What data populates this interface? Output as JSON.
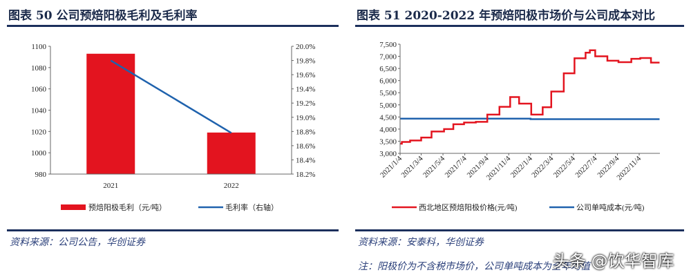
{
  "left": {
    "title": "图表 50 公司预焙阳极毛利及毛利率",
    "source": "资料来源：公司公告，华创证券"
  },
  "right": {
    "title": "图表 51 2020-2022 年预焙阳极市场价与公司成本对比",
    "source": "资料来源：安泰科，华创证券",
    "note": "注：阳极价为不含税市场价，公司单吨成本为全年均值"
  },
  "watermark": "头条 @饮华智库",
  "colors": {
    "red": "#e3141f",
    "blue": "#1f62ad",
    "navy": "#1b2f5c"
  },
  "chart_data": [
    {
      "type": "bar+line",
      "categories": [
        "2021",
        "2022"
      ],
      "series": [
        {
          "name": "预焙阳极毛利（元/吨）",
          "type": "bar",
          "axis": "left",
          "values": [
            1093,
            1019
          ]
        },
        {
          "name": "毛利率（右轴）",
          "type": "line",
          "axis": "right",
          "values": [
            19.8,
            18.78
          ]
        }
      ],
      "ylim": [
        980,
        1100
      ],
      "yticks": [
        "980",
        "1000",
        "1020",
        "1040",
        "1060",
        "1080",
        "1100"
      ],
      "y2lim": [
        18.2,
        20.0
      ],
      "y2ticks": [
        "18.2%",
        "18.4%",
        "18.6%",
        "18.8%",
        "19.0%",
        "19.2%",
        "19.4%",
        "19.6%",
        "19.8%",
        "20.0%"
      ],
      "legend": "bottom"
    },
    {
      "type": "line",
      "xticks": [
        "2021/1/4",
        "2021/3/4",
        "2021/5/4",
        "2021/7/4",
        "2021/9/4",
        "2021/11/4",
        "2022/1/4",
        "2022/3/4",
        "2022/5/4",
        "2022/7/4",
        "2022/9/4",
        "2022/11/4"
      ],
      "ylim": [
        3000,
        7500
      ],
      "yticks": [
        "3,000",
        "3,500",
        "4,000",
        "4,500",
        "5,000",
        "5,500",
        "6,000",
        "6,500",
        "7,000",
        "7,500"
      ],
      "legend": "bottom",
      "series": [
        {
          "name": "西北地区预焙阳极价格(元/吨)",
          "step": true,
          "points": [
            [
              "2021/1/4",
              3400
            ],
            [
              "2021/1/9",
              3470
            ],
            [
              "2021/2/1",
              3530
            ],
            [
              "2021/3/4",
              3650
            ],
            [
              "2021/4/2",
              3900
            ],
            [
              "2021/5/7",
              4000
            ],
            [
              "2021/6/2",
              4200
            ],
            [
              "2021/7/2",
              4270
            ],
            [
              "2021/8/4",
              4300
            ],
            [
              "2021/9/5",
              4600
            ],
            [
              "2021/10/9",
              4920
            ],
            [
              "2021/11/8",
              5320
            ],
            [
              "2021/12/3",
              5050
            ],
            [
              "2022/1/6",
              4600
            ],
            [
              "2022/2/7",
              4900
            ],
            [
              "2022/3/3",
              5550
            ],
            [
              "2022/4/7",
              6300
            ],
            [
              "2022/5/7",
              6920
            ],
            [
              "2022/6/7",
              7150
            ],
            [
              "2022/6/19",
              7250
            ],
            [
              "2022/7/4",
              7000
            ],
            [
              "2022/8/7",
              6820
            ],
            [
              "2022/9/7",
              6760
            ],
            [
              "2022/10/13",
              6900
            ],
            [
              "2022/11/7",
              6930
            ],
            [
              "2022/12/7",
              6740
            ],
            [
              "2022/12/31",
              6740
            ]
          ]
        },
        {
          "name": "公司单吨成本(元/吨)",
          "step": true,
          "points": [
            [
              "2021/1/4",
              4430
            ],
            [
              "2022/1/4",
              4410
            ],
            [
              "2022/12/31",
              4410
            ]
          ]
        }
      ]
    }
  ]
}
